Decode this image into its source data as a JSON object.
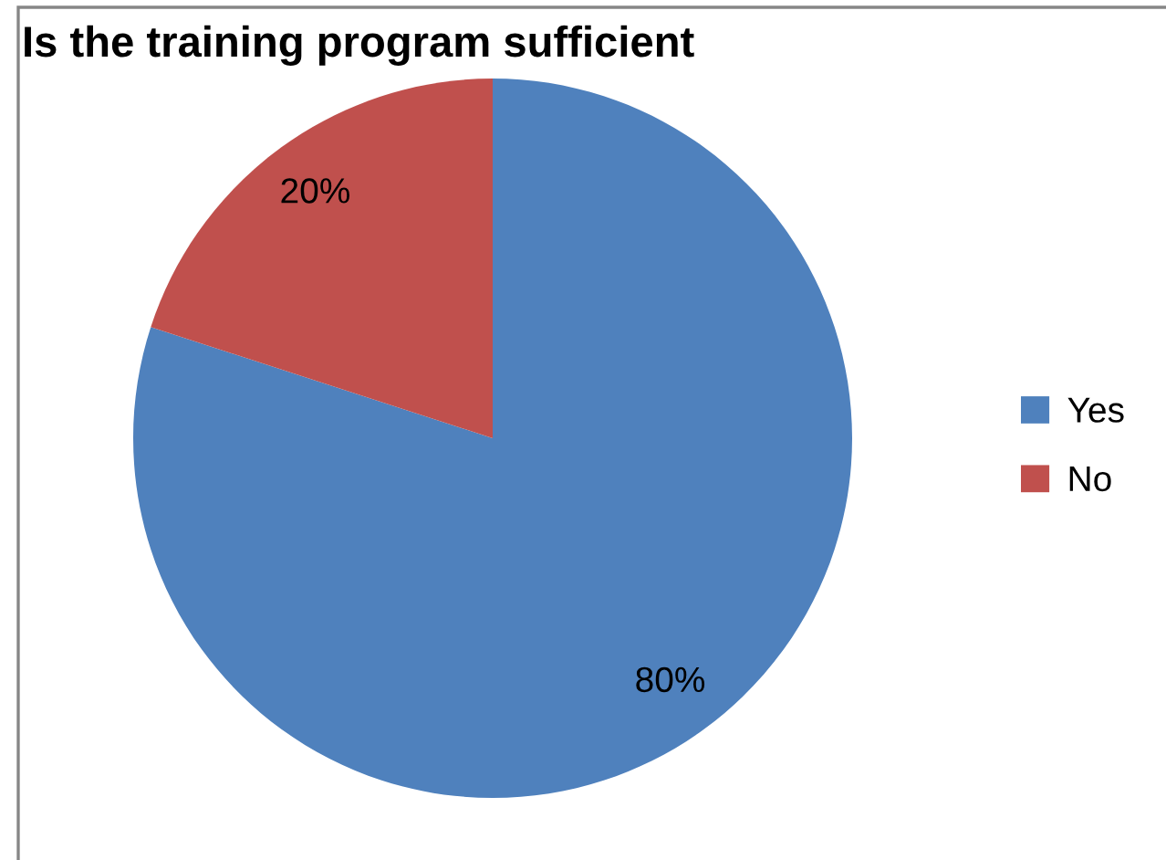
{
  "chart_data": {
    "type": "pie",
    "title": "Is the training program sufficient",
    "categories": [
      "Yes",
      "No"
    ],
    "values": [
      80,
      20
    ],
    "colors": [
      "#4f81bd",
      "#c0504d"
    ],
    "value_labels": [
      "80%",
      "20%"
    ],
    "legend": "right"
  }
}
